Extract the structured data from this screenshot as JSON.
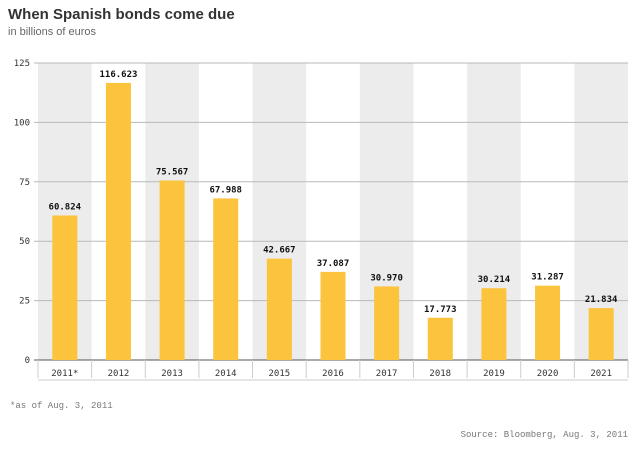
{
  "header": {
    "title": "When Spanish bonds come due",
    "subtitle": "in billions of euros"
  },
  "footer": {
    "footnote": "*as of Aug. 3, 2011",
    "source": "Source: Bloomberg, Aug. 3, 2011"
  },
  "colors": {
    "bar": "#fcc33c",
    "band_shaded": "#ececec",
    "gridline": "#b9b9b9",
    "axis": "#555555"
  },
  "chart_data": {
    "type": "bar",
    "title": "When Spanish bonds come due",
    "subtitle": "in billions of euros",
    "categories": [
      "2011*",
      "2012",
      "2013",
      "2014",
      "2015",
      "2016",
      "2017",
      "2018",
      "2019",
      "2020",
      "2021"
    ],
    "values": [
      60.824,
      116.623,
      75.567,
      67.988,
      42.667,
      37.087,
      30.97,
      17.773,
      30.214,
      31.287,
      21.834
    ],
    "data_labels": [
      "60.824",
      "116.623",
      "75.567",
      "67.988",
      "42.667",
      "37.087",
      "30.970",
      "17.773",
      "30.214",
      "31.287",
      "21.834"
    ],
    "xlabel": "",
    "ylabel": "",
    "ylim": [
      0,
      125
    ],
    "yticks": [
      0,
      25,
      50,
      75,
      100,
      125
    ],
    "ytick_labels": [
      "0",
      "25",
      "50",
      "75",
      "100",
      "125"
    ],
    "grid": true,
    "alternating_bands": true
  }
}
